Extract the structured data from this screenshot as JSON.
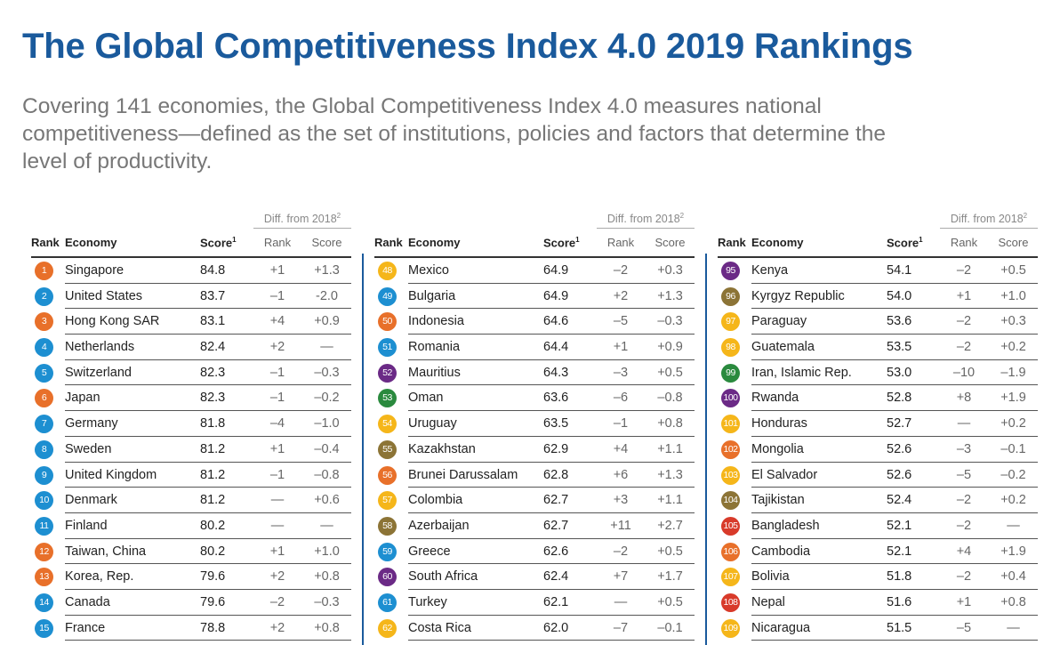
{
  "title": "The Global Competitiveness Index 4.0 2019 Rankings",
  "subtitle": "Covering 141 economies, the Global Competitiveness Index 4.0 measures national competitiveness—defined as the set of institutions, policies and factors that determine the level of productivity.",
  "header": {
    "diff_label": "Diff. from 2018",
    "diff_note": "2",
    "rank": "Rank",
    "economy": "Economy",
    "score": "Score",
    "score_note": "1",
    "diff_rank": "Rank",
    "diff_score": "Score"
  },
  "columns": [
    {
      "rows": [
        {
          "rank": "1",
          "economy": "Singapore",
          "score": "84.8",
          "diff_rank": "+1",
          "diff_score": "+1.3",
          "color": "#e8702a"
        },
        {
          "rank": "2",
          "economy": "United States",
          "score": "83.7",
          "diff_rank": "–1",
          "diff_score": "-2.0",
          "color": "#1d8fd1"
        },
        {
          "rank": "3",
          "economy": "Hong Kong SAR",
          "score": "83.1",
          "diff_rank": "+4",
          "diff_score": "+0.9",
          "color": "#e8702a"
        },
        {
          "rank": "4",
          "economy": "Netherlands",
          "score": "82.4",
          "diff_rank": "+2",
          "diff_score": "—",
          "color": "#1d8fd1"
        },
        {
          "rank": "5",
          "economy": "Switzerland",
          "score": "82.3",
          "diff_rank": "–1",
          "diff_score": "–0.3",
          "color": "#1d8fd1"
        },
        {
          "rank": "6",
          "economy": "Japan",
          "score": "82.3",
          "diff_rank": "–1",
          "diff_score": "–0.2",
          "color": "#e8702a"
        },
        {
          "rank": "7",
          "economy": "Germany",
          "score": "81.8",
          "diff_rank": "–4",
          "diff_score": "–1.0",
          "color": "#1d8fd1"
        },
        {
          "rank": "8",
          "economy": "Sweden",
          "score": "81.2",
          "diff_rank": "+1",
          "diff_score": "–0.4",
          "color": "#1d8fd1"
        },
        {
          "rank": "9",
          "economy": "United Kingdom",
          "score": "81.2",
          "diff_rank": "–1",
          "diff_score": "–0.8",
          "color": "#1d8fd1"
        },
        {
          "rank": "10",
          "economy": "Denmark",
          "score": "81.2",
          "diff_rank": "—",
          "diff_score": "+0.6",
          "color": "#1d8fd1"
        },
        {
          "rank": "11",
          "economy": "Finland",
          "score": "80.2",
          "diff_rank": "—",
          "diff_score": "—",
          "color": "#1d8fd1"
        },
        {
          "rank": "12",
          "economy": "Taiwan, China",
          "score": "80.2",
          "diff_rank": "+1",
          "diff_score": "+1.0",
          "color": "#e8702a"
        },
        {
          "rank": "13",
          "economy": "Korea, Rep.",
          "score": "79.6",
          "diff_rank": "+2",
          "diff_score": "+0.8",
          "color": "#e8702a"
        },
        {
          "rank": "14",
          "economy": "Canada",
          "score": "79.6",
          "diff_rank": "–2",
          "diff_score": "–0.3",
          "color": "#1d8fd1"
        },
        {
          "rank": "15",
          "economy": "France",
          "score": "78.8",
          "diff_rank": "+2",
          "diff_score": "+0.8",
          "color": "#1d8fd1"
        }
      ]
    },
    {
      "rows": [
        {
          "rank": "48",
          "economy": "Mexico",
          "score": "64.9",
          "diff_rank": "–2",
          "diff_score": "+0.3",
          "color": "#f5b61a"
        },
        {
          "rank": "49",
          "economy": "Bulgaria",
          "score": "64.9",
          "diff_rank": "+2",
          "diff_score": "+1.3",
          "color": "#1d8fd1"
        },
        {
          "rank": "50",
          "economy": "Indonesia",
          "score": "64.6",
          "diff_rank": "–5",
          "diff_score": "–0.3",
          "color": "#e8702a"
        },
        {
          "rank": "51",
          "economy": "Romania",
          "score": "64.4",
          "diff_rank": "+1",
          "diff_score": "+0.9",
          "color": "#1d8fd1"
        },
        {
          "rank": "52",
          "economy": "Mauritius",
          "score": "64.3",
          "diff_rank": "–3",
          "diff_score": "+0.5",
          "color": "#6b2a86"
        },
        {
          "rank": "53",
          "economy": "Oman",
          "score": "63.6",
          "diff_rank": "–6",
          "diff_score": "–0.8",
          "color": "#2a8a3e"
        },
        {
          "rank": "54",
          "economy": "Uruguay",
          "score": "63.5",
          "diff_rank": "–1",
          "diff_score": "+0.8",
          "color": "#f5b61a"
        },
        {
          "rank": "55",
          "economy": "Kazakhstan",
          "score": "62.9",
          "diff_rank": "+4",
          "diff_score": "+1.1",
          "color": "#8c7436"
        },
        {
          "rank": "56",
          "economy": "Brunei Darussalam",
          "score": "62.8",
          "diff_rank": "+6",
          "diff_score": "+1.3",
          "color": "#e8702a"
        },
        {
          "rank": "57",
          "economy": "Colombia",
          "score": "62.7",
          "diff_rank": "+3",
          "diff_score": "+1.1",
          "color": "#f5b61a"
        },
        {
          "rank": "58",
          "economy": "Azerbaijan",
          "score": "62.7",
          "diff_rank": "+11",
          "diff_score": "+2.7",
          "color": "#8c7436"
        },
        {
          "rank": "59",
          "economy": "Greece",
          "score": "62.6",
          "diff_rank": "–2",
          "diff_score": "+0.5",
          "color": "#1d8fd1"
        },
        {
          "rank": "60",
          "economy": "South Africa",
          "score": "62.4",
          "diff_rank": "+7",
          "diff_score": "+1.7",
          "color": "#6b2a86"
        },
        {
          "rank": "61",
          "economy": "Turkey",
          "score": "62.1",
          "diff_rank": "—",
          "diff_score": "+0.5",
          "color": "#1d8fd1"
        },
        {
          "rank": "62",
          "economy": "Costa Rica",
          "score": "62.0",
          "diff_rank": "–7",
          "diff_score": "–0.1",
          "color": "#f5b61a"
        }
      ]
    },
    {
      "rows": [
        {
          "rank": "95",
          "economy": "Kenya",
          "score": "54.1",
          "diff_rank": "–2",
          "diff_score": "+0.5",
          "color": "#6b2a86"
        },
        {
          "rank": "96",
          "economy": "Kyrgyz Republic",
          "score": "54.0",
          "diff_rank": "+1",
          "diff_score": "+1.0",
          "color": "#8c7436"
        },
        {
          "rank": "97",
          "economy": "Paraguay",
          "score": "53.6",
          "diff_rank": "–2",
          "diff_score": "+0.3",
          "color": "#f5b61a"
        },
        {
          "rank": "98",
          "economy": "Guatemala",
          "score": "53.5",
          "diff_rank": "–2",
          "diff_score": "+0.2",
          "color": "#f5b61a"
        },
        {
          "rank": "99",
          "economy": "Iran, Islamic Rep.",
          "score": "53.0",
          "diff_rank": "–10",
          "diff_score": "–1.9",
          "color": "#2a8a3e"
        },
        {
          "rank": "100",
          "economy": "Rwanda",
          "score": "52.8",
          "diff_rank": "+8",
          "diff_score": "+1.9",
          "color": "#6b2a86"
        },
        {
          "rank": "101",
          "economy": "Honduras",
          "score": "52.7",
          "diff_rank": "—",
          "diff_score": "+0.2",
          "color": "#f5b61a"
        },
        {
          "rank": "102",
          "economy": "Mongolia",
          "score": "52.6",
          "diff_rank": "–3",
          "diff_score": "–0.1",
          "color": "#e8702a"
        },
        {
          "rank": "103",
          "economy": "El Salvador",
          "score": "52.6",
          "diff_rank": "–5",
          "diff_score": "–0.2",
          "color": "#f5b61a"
        },
        {
          "rank": "104",
          "economy": "Tajikistan",
          "score": "52.4",
          "diff_rank": "–2",
          "diff_score": "+0.2",
          "color": "#8c7436"
        },
        {
          "rank": "105",
          "economy": "Bangladesh",
          "score": "52.1",
          "diff_rank": "–2",
          "diff_score": "—",
          "color": "#d83a2a"
        },
        {
          "rank": "106",
          "economy": "Cambodia",
          "score": "52.1",
          "diff_rank": "+4",
          "diff_score": "+1.9",
          "color": "#e8702a"
        },
        {
          "rank": "107",
          "economy": "Bolivia",
          "score": "51.8",
          "diff_rank": "–2",
          "diff_score": "+0.4",
          "color": "#f5b61a"
        },
        {
          "rank": "108",
          "economy": "Nepal",
          "score": "51.6",
          "diff_rank": "+1",
          "diff_score": "+0.8",
          "color": "#d83a2a"
        },
        {
          "rank": "109",
          "economy": "Nicaragua",
          "score": "51.5",
          "diff_rank": "–5",
          "diff_score": "—",
          "color": "#f5b61a"
        }
      ]
    }
  ]
}
